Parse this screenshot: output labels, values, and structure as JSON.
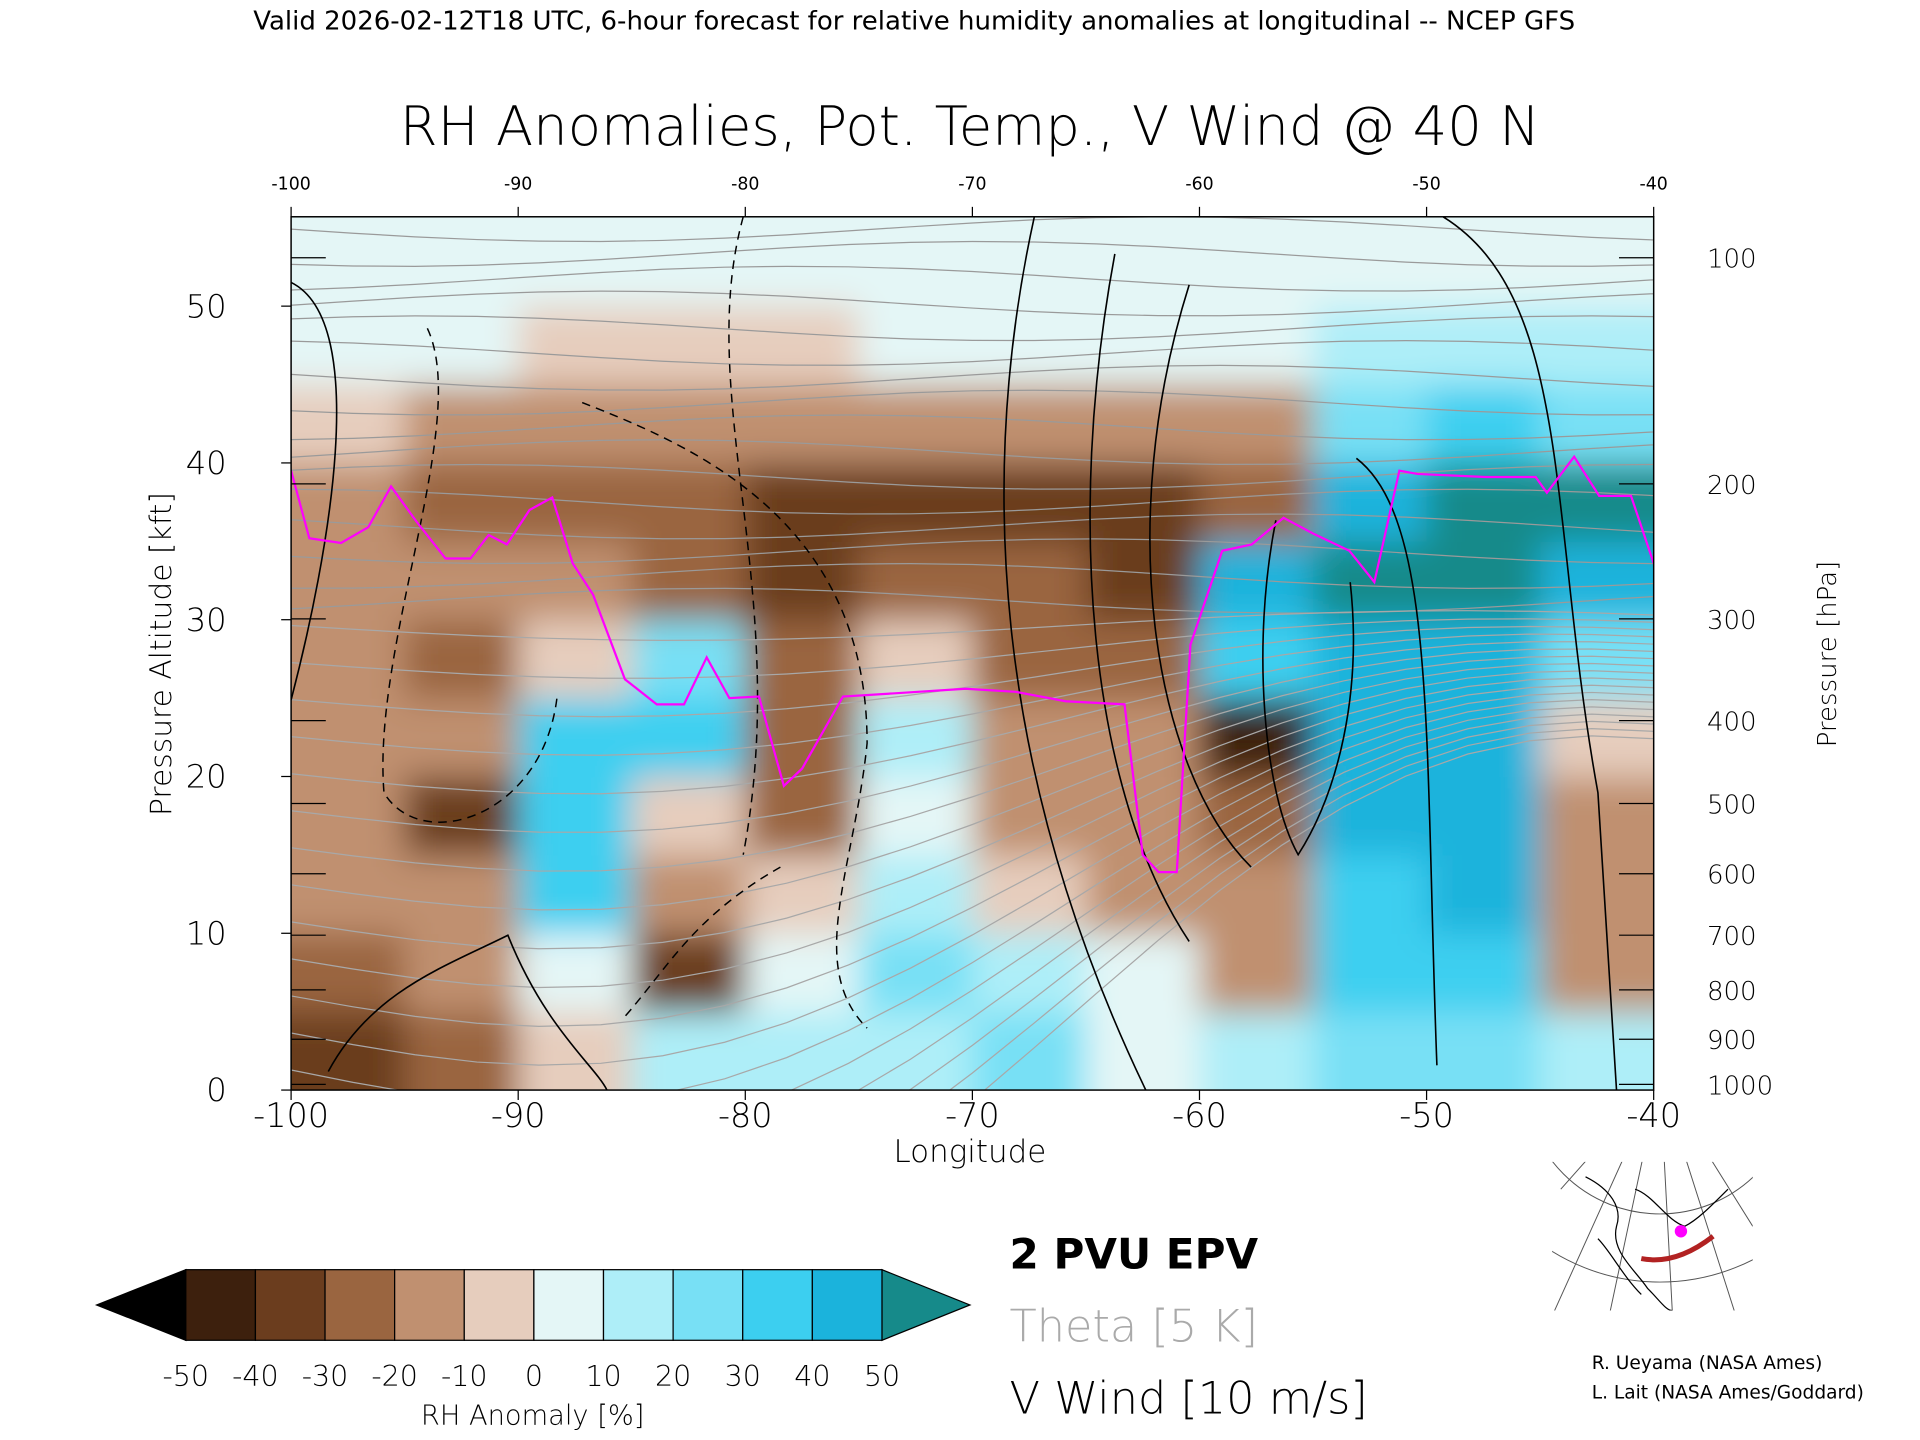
{
  "header": "Valid 2026-02-12T18 UTC, 6-hour forecast for relative humidity anomalies at longitudinal -- NCEP GFS",
  "chart_data": {
    "type": "contour",
    "title": "RH Anomalies, Pot. Temp., V Wind @ 40 N",
    "x_label": "Longitude",
    "y_label": "Pressure Altitude [kft]",
    "y2_label": "Pressure [hPa]",
    "xlim": [
      -100,
      -40
    ],
    "xticks": [
      -100,
      -90,
      -80,
      -70,
      -60,
      -50,
      -40
    ],
    "ylim": [
      0,
      55.7
    ],
    "yticks": [
      0,
      10,
      20,
      30,
      40,
      50
    ],
    "y2ticks": [
      100,
      200,
      300,
      400,
      500,
      600,
      700,
      800,
      900,
      1000
    ],
    "x": [
      -97.5,
      -92.5,
      -87.5,
      -82.5,
      -77.5,
      -72.5,
      -67.5,
      -62.5,
      -57.5,
      -52.5,
      -47.5,
      -42.5
    ],
    "y": [
      2.5,
      7.5,
      12.5,
      17.5,
      22.5,
      27.5,
      32.5,
      37.5,
      42.5,
      47.5,
      52.5
    ],
    "z": [
      [
        -35,
        -30,
        -10,
        15,
        10,
        15,
        20,
        5,
        15,
        25,
        20,
        15
      ],
      [
        -30,
        -20,
        5,
        -40,
        5,
        20,
        10,
        0,
        -15,
        35,
        35,
        -15
      ],
      [
        -20,
        -15,
        30,
        -20,
        -10,
        15,
        -5,
        -15,
        -20,
        35,
        40,
        -20
      ],
      [
        -15,
        -35,
        35,
        -10,
        -25,
        5,
        -15,
        -20,
        -30,
        40,
        40,
        -15
      ],
      [
        -15,
        -20,
        35,
        30,
        -25,
        10,
        -20,
        -20,
        -50,
        40,
        40,
        -10
      ],
      [
        -20,
        -25,
        -10,
        25,
        -30,
        -10,
        -25,
        -30,
        35,
        45,
        45,
        25
      ],
      [
        -15,
        -20,
        -20,
        -25,
        -35,
        -30,
        -30,
        -35,
        45,
        50,
        50,
        45
      ],
      [
        -20,
        -25,
        -30,
        -30,
        -35,
        -35,
        -35,
        -35,
        -25,
        45,
        55,
        50
      ],
      [
        -10,
        -15,
        -20,
        -20,
        -20,
        -20,
        -20,
        -20,
        -15,
        25,
        30,
        25
      ],
      [
        0,
        0,
        -5,
        -5,
        -5,
        0,
        0,
        0,
        0,
        10,
        10,
        10
      ],
      [
        0,
        0,
        0,
        0,
        0,
        0,
        0,
        0,
        0,
        0,
        0,
        0
      ]
    ],
    "colorbar": {
      "label": "RH Anomaly [%]",
      "levels": [
        -50,
        -40,
        -30,
        -20,
        -10,
        0,
        10,
        20,
        30,
        40,
        50
      ],
      "colors": [
        "#000000",
        "#3d200d",
        "#6b3d1e",
        "#9a6540",
        "#c09070",
        "#e6cdbd",
        "#e4f6f6",
        "#aeeef8",
        "#78e0f5",
        "#3ccff0",
        "#1bb3dc",
        "#168a8a"
      ]
    },
    "series": [
      {
        "name": "2 PVU EPV",
        "color": "#ff00ff",
        "x": [
          -100,
          -99.2,
          -97.8,
          -96.6,
          -95.6,
          -94.5,
          -93.2,
          -92.1,
          -91.3,
          -90.5,
          -89.5,
          -88.5,
          -87.6,
          -86.7,
          -85.3,
          -83.9,
          -82.7,
          -81.7,
          -80.7,
          -79.4,
          -78.3,
          -77.5,
          -75.7,
          -73.5,
          -70.3,
          -68.1,
          -65.9,
          -63.3,
          -62.5,
          -61.8,
          -61.0,
          -60.4,
          -59.0,
          -57.7,
          -56.3,
          -55.0,
          -53.4,
          -52.3,
          -51.2,
          -50.4,
          -47.4,
          -45.2,
          -44.7,
          -43.5,
          -42.4,
          -41.0,
          -40
        ],
        "values": [
          39.5,
          35.2,
          34.9,
          35.9,
          38.5,
          36.3,
          33.9,
          33.9,
          35.4,
          34.8,
          37.0,
          37.8,
          33.6,
          31.6,
          26.2,
          24.6,
          24.6,
          27.6,
          25.0,
          25.1,
          19.4,
          20.5,
          25.1,
          25.3,
          25.6,
          25.4,
          24.8,
          24.6,
          15.0,
          13.9,
          13.9,
          28.4,
          34.4,
          34.8,
          36.5,
          35.5,
          34.4,
          32.4,
          39.5,
          39.3,
          39.1,
          39.1,
          38.1,
          40.4,
          37.9,
          37.9,
          33.6
        ]
      }
    ],
    "legend": [
      {
        "name": "Theta [5 K]",
        "color": "#aaaaaa"
      },
      {
        "name": "V Wind [10 m/s]",
        "color": "#000000"
      }
    ]
  },
  "credits": [
    "R. Ueyama (NASA Ames)",
    "L. Lait (NASA Ames/Goddard)"
  ]
}
